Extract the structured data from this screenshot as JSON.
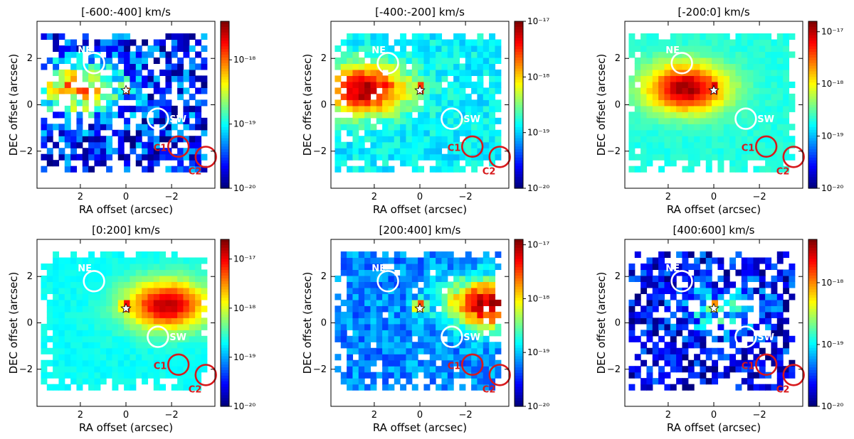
{
  "chart_data": [
    {
      "type": "heatmap",
      "title": "[-600:-400] km/s",
      "xlabel": "RA offset (arcsec)",
      "ylabel": "DEC offset (arcsec)",
      "x_ticks": [
        "2",
        "0",
        "−2"
      ],
      "y_ticks": [
        "2",
        "0",
        "−2"
      ],
      "colorbar_ticks": [
        "10⁻²⁰",
        "10⁻¹⁹",
        "10⁻¹⁸"
      ],
      "colorbar_log_range": [
        -20,
        -17.4
      ],
      "colorbar_tick_values": [
        -20,
        -19,
        -18
      ],
      "emission": {
        "blob_x": 2.1,
        "blob_y": 0.6,
        "peak_log": -18.1,
        "bg_log": -19.6,
        "noise": 0.9,
        "holes": 0.25,
        "nucleus_log": -17.5
      },
      "regions": [
        {
          "label": "NE",
          "x": 1.4,
          "y": 1.8,
          "r": 0.45,
          "color": "#ffffff"
        },
        {
          "label": "SW",
          "x": -1.4,
          "y": -0.6,
          "r": 0.45,
          "color": "#ffffff"
        },
        {
          "label": "C1",
          "x": -2.3,
          "y": -1.8,
          "r": 0.45,
          "color": "#d7191c"
        },
        {
          "label": "C2",
          "x": -3.5,
          "y": -2.25,
          "r": 0.45,
          "color": "#d7191c"
        }
      ],
      "nucleus": {
        "x": 0,
        "y": 0.62
      }
    },
    {
      "type": "heatmap",
      "title": "[-400:-200] km/s",
      "xlabel": "RA offset (arcsec)",
      "ylabel": "DEC offset (arcsec)",
      "x_ticks": [
        "2",
        "0",
        "−2"
      ],
      "y_ticks": [
        "2",
        "0",
        "−2"
      ],
      "colorbar_ticks": [
        "10⁻²⁰",
        "10⁻¹⁹",
        "10⁻¹⁸",
        "10⁻¹⁷"
      ],
      "colorbar_log_range": [
        -20,
        -17
      ],
      "colorbar_tick_values": [
        -20,
        -19,
        -18,
        -17
      ],
      "emission": {
        "blob_x": 2.4,
        "blob_y": 0.55,
        "peak_log": -17.1,
        "bg_log": -18.9,
        "noise": 0.35,
        "holes": 0.04,
        "nucleus_log": -17.2
      },
      "regions": [
        {
          "label": "NE",
          "x": 1.4,
          "y": 1.8,
          "r": 0.45,
          "color": "#ffffff"
        },
        {
          "label": "SW",
          "x": -1.4,
          "y": -0.6,
          "r": 0.45,
          "color": "#ffffff"
        },
        {
          "label": "C1",
          "x": -2.3,
          "y": -1.8,
          "r": 0.45,
          "color": "#d7191c"
        },
        {
          "label": "C2",
          "x": -3.5,
          "y": -2.25,
          "r": 0.45,
          "color": "#d7191c"
        }
      ],
      "nucleus": {
        "x": 0,
        "y": 0.62
      }
    },
    {
      "type": "heatmap",
      "title": "[-200:0] km/s",
      "xlabel": "RA offset (arcsec)",
      "ylabel": "DEC offset (arcsec)",
      "x_ticks": [
        "2",
        "0",
        "−2"
      ],
      "y_ticks": [
        "2",
        "0",
        "−2"
      ],
      "colorbar_ticks": [
        "10⁻²⁰",
        "10⁻¹⁹",
        "10⁻¹⁸",
        "10⁻¹⁷"
      ],
      "colorbar_log_range": [
        -20,
        -16.8
      ],
      "colorbar_tick_values": [
        -20,
        -19,
        -18,
        -17
      ],
      "emission": {
        "blob_x": 1.2,
        "blob_y": 0.6,
        "peak_log": -16.9,
        "bg_log": -18.7,
        "noise": 0.15,
        "holes": 0.0,
        "nucleus_log": -16.8
      },
      "regions": [
        {
          "label": "NE",
          "x": 1.4,
          "y": 1.8,
          "r": 0.45,
          "color": "#ffffff"
        },
        {
          "label": "SW",
          "x": -1.4,
          "y": -0.6,
          "r": 0.45,
          "color": "#ffffff"
        },
        {
          "label": "C1",
          "x": -2.3,
          "y": -1.8,
          "r": 0.45,
          "color": "#d7191c"
        },
        {
          "label": "C2",
          "x": -3.5,
          "y": -2.25,
          "r": 0.45,
          "color": "#d7191c"
        }
      ],
      "nucleus": {
        "x": 0,
        "y": 0.62
      }
    },
    {
      "type": "heatmap",
      "title": "[0:200] km/s",
      "xlabel": "RA offset (arcsec)",
      "ylabel": "DEC offset (arcsec)",
      "x_ticks": [
        "2",
        "0",
        "−2"
      ],
      "y_ticks": [
        "2",
        "0",
        "−2"
      ],
      "colorbar_ticks": [
        "10⁻²⁰",
        "10⁻¹⁹",
        "10⁻¹⁸",
        "10⁻¹⁷"
      ],
      "colorbar_log_range": [
        -20,
        -16.6
      ],
      "colorbar_tick_values": [
        -20,
        -19,
        -18,
        -17
      ],
      "emission": {
        "blob_x": -1.8,
        "blob_y": 0.65,
        "peak_log": -16.8,
        "bg_log": -18.7,
        "noise": 0.15,
        "holes": 0.0,
        "nucleus_log": -16.7
      },
      "regions": [
        {
          "label": "NE",
          "x": 1.4,
          "y": 1.8,
          "r": 0.45,
          "color": "#ffffff"
        },
        {
          "label": "SW",
          "x": -1.4,
          "y": -0.6,
          "r": 0.45,
          "color": "#ffffff"
        },
        {
          "label": "C1",
          "x": -2.3,
          "y": -1.8,
          "r": 0.45,
          "color": "#d7191c"
        },
        {
          "label": "C2",
          "x": -3.5,
          "y": -2.25,
          "r": 0.45,
          "color": "#d7191c"
        }
      ],
      "nucleus": {
        "x": 0,
        "y": 0.62
      }
    },
    {
      "type": "heatmap",
      "title": "[200:400] km/s",
      "xlabel": "RA offset (arcsec)",
      "ylabel": "DEC offset (arcsec)",
      "x_ticks": [
        "2",
        "0",
        "−2"
      ],
      "y_ticks": [
        "2",
        "0",
        "−2"
      ],
      "colorbar_ticks": [
        "10⁻²⁰",
        "10⁻¹⁹",
        "10⁻¹⁸",
        "10⁻¹⁷"
      ],
      "colorbar_log_range": [
        -20,
        -16.9
      ],
      "colorbar_tick_values": [
        -20,
        -19,
        -18,
        -17
      ],
      "emission": {
        "blob_x": -3.0,
        "blob_y": 0.7,
        "peak_log": -17.0,
        "bg_log": -19.2,
        "noise": 0.5,
        "holes": 0.06,
        "nucleus_log": -17.2
      },
      "regions": [
        {
          "label": "NE",
          "x": 1.4,
          "y": 1.8,
          "r": 0.45,
          "color": "#ffffff"
        },
        {
          "label": "SW",
          "x": -1.4,
          "y": -0.6,
          "r": 0.45,
          "color": "#ffffff"
        },
        {
          "label": "C1",
          "x": -2.3,
          "y": -1.8,
          "r": 0.45,
          "color": "#d7191c"
        },
        {
          "label": "C2",
          "x": -3.5,
          "y": -2.25,
          "r": 0.45,
          "color": "#d7191c"
        }
      ],
      "nucleus": {
        "x": 0,
        "y": 0.62
      }
    },
    {
      "type": "heatmap",
      "title": "[400:600] km/s",
      "xlabel": "RA offset (arcsec)",
      "ylabel": "DEC offset (arcsec)",
      "x_ticks": [
        "2",
        "0",
        "−2"
      ],
      "y_ticks": [
        "2",
        "0",
        "−2"
      ],
      "colorbar_ticks": [
        "10⁻²⁰",
        "10⁻¹⁹",
        "10⁻¹⁸"
      ],
      "colorbar_log_range": [
        -20,
        -17.3
      ],
      "colorbar_tick_values": [
        -20,
        -19,
        -18
      ],
      "emission": {
        "blob_x": -0.4,
        "blob_y": 0.4,
        "peak_log": -19.0,
        "bg_log": -19.7,
        "noise": 0.8,
        "holes": 0.28,
        "nucleus_log": -17.4
      },
      "regions": [
        {
          "label": "NE",
          "x": 1.4,
          "y": 1.8,
          "r": 0.45,
          "color": "#ffffff"
        },
        {
          "label": "SW",
          "x": -1.4,
          "y": -0.6,
          "r": 0.45,
          "color": "#ffffff"
        },
        {
          "label": "C1",
          "x": -2.3,
          "y": -1.8,
          "r": 0.45,
          "color": "#d7191c"
        },
        {
          "label": "C2",
          "x": -3.5,
          "y": -2.25,
          "r": 0.45,
          "color": "#d7191c"
        }
      ],
      "nucleus": {
        "x": 0,
        "y": 0.62
      }
    }
  ]
}
